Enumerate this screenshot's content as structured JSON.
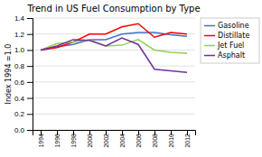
{
  "chart_data": {
    "type": "line",
    "title": "Trend in US Fuel Consumption by Type",
    "ylabel": "Index 1994 =1.0",
    "x": [
      1994,
      1996,
      1998,
      2000,
      2002,
      2004,
      2006,
      2008,
      2010,
      2012
    ],
    "series": [
      {
        "name": "Gasoline",
        "color": "#4472c4",
        "values": [
          1.0,
          1.04,
          1.07,
          1.13,
          1.13,
          1.2,
          1.22,
          1.22,
          1.19,
          1.17
        ]
      },
      {
        "name": "Distillate",
        "color": "#ff0000",
        "values": [
          1.0,
          1.03,
          1.1,
          1.2,
          1.2,
          1.29,
          1.33,
          1.16,
          1.22,
          1.2
        ]
      },
      {
        "name": "Jet Fuel",
        "color": "#92d050",
        "values": [
          1.0,
          1.08,
          1.1,
          1.13,
          1.05,
          1.06,
          1.13,
          1.0,
          0.97,
          0.96
        ]
      },
      {
        "name": "Asphalt",
        "color": "#7030a0",
        "values": [
          1.0,
          1.05,
          1.13,
          1.12,
          1.05,
          1.15,
          1.07,
          0.76,
          0.74,
          0.72
        ]
      }
    ],
    "xlim": [
      1993,
      2013
    ],
    "xticks": [
      1994,
      1996,
      1998,
      2000,
      2002,
      2004,
      2006,
      2008,
      2010,
      2012
    ],
    "ylim": [
      0.0,
      1.4
    ],
    "yticks": [
      {
        "value": 0.0,
        "label": "0.0"
      },
      0.2,
      0.4,
      0.6,
      0.8,
      {
        "value": 1.0,
        "label": "1.0"
      },
      1.2,
      1.4
    ],
    "grid": true,
    "legend": "right"
  }
}
